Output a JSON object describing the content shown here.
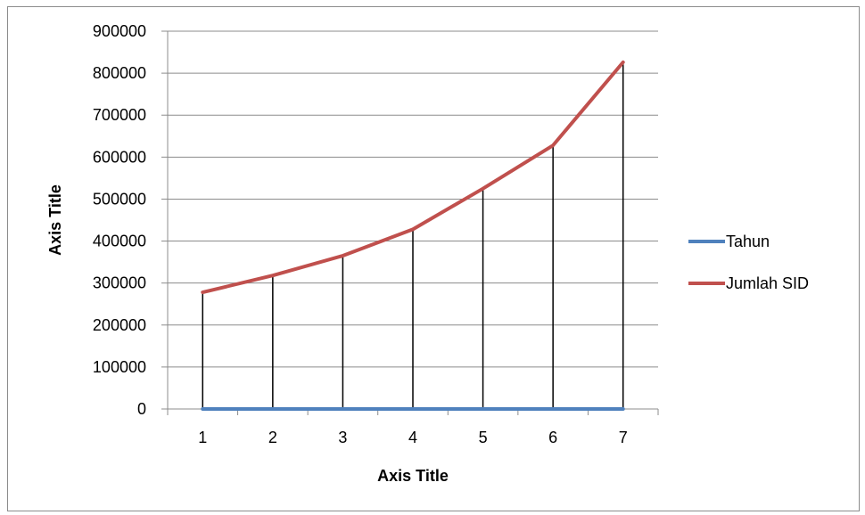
{
  "chart_data": {
    "type": "line",
    "title": "",
    "xlabel": "Axis Title",
    "ylabel": "Axis Title",
    "categories": [
      "1",
      "2",
      "3",
      "4",
      "5",
      "6",
      "7"
    ],
    "ylim": [
      0,
      900000
    ],
    "yticks": [
      "0",
      "100000",
      "200000",
      "300000",
      "400000",
      "500000",
      "600000",
      "700000",
      "800000",
      "900000"
    ],
    "grid": true,
    "drop_lines": true,
    "legend_position": "right",
    "series": [
      {
        "name": "Tahun",
        "color": "#4f81bd",
        "values": [
          1,
          2,
          3,
          4,
          5,
          6,
          7
        ]
      },
      {
        "name": "Jumlah SID",
        "color": "#c0504d",
        "values": [
          278000,
          318000,
          365000,
          428000,
          525000,
          628000,
          826000
        ]
      }
    ]
  }
}
